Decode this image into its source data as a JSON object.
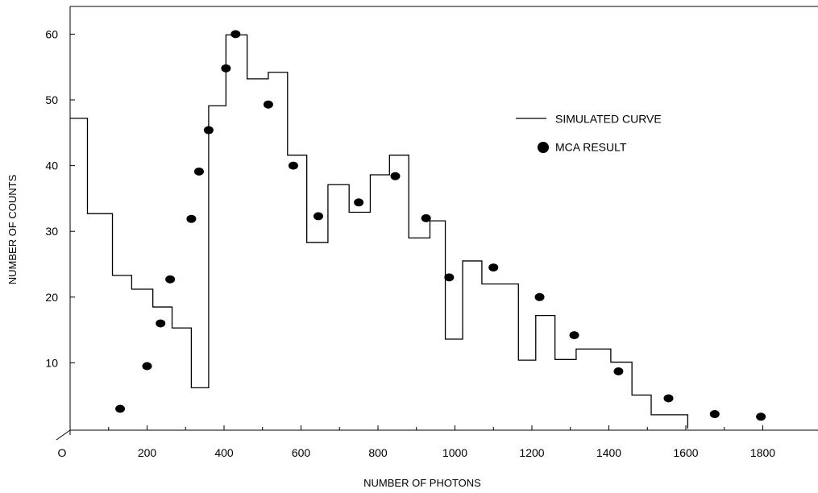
{
  "chart_data": {
    "type": "line",
    "title": "",
    "xlabel": "NUMBER OF PHOTONS",
    "ylabel": "NUMBER OF COUNTS",
    "xlim": [
      0,
      1850
    ],
    "ylim": [
      0,
      65
    ],
    "x_ticks": [
      {
        "value": 0,
        "label": "O"
      },
      {
        "value": 200,
        "label": "200"
      },
      {
        "value": 400,
        "label": "400"
      },
      {
        "value": 600,
        "label": "600"
      },
      {
        "value": 800,
        "label": "800"
      },
      {
        "value": 1000,
        "label": "1000"
      },
      {
        "value": 1200,
        "label": "1200"
      },
      {
        "value": 1400,
        "label": "1400"
      },
      {
        "value": 1600,
        "label": "1600"
      },
      {
        "value": 1800,
        "label": "1800"
      }
    ],
    "y_ticks": [
      {
        "value": 10,
        "label": "10"
      },
      {
        "value": 20,
        "label": "20"
      },
      {
        "value": 30,
        "label": "30"
      },
      {
        "value": 40,
        "label": "40"
      },
      {
        "value": 50,
        "label": "50"
      },
      {
        "value": 60,
        "label": "60"
      }
    ],
    "legend": {
      "placement": "top-right",
      "items": [
        {
          "label": "SIMULATED CURVE",
          "marker": "line"
        },
        {
          "label": "MCA  RESULT",
          "marker": "dot"
        }
      ]
    },
    "series": [
      {
        "name": "SIMULATED CURVE",
        "style": "step",
        "color": "#000000",
        "steps": [
          {
            "x0": 0,
            "x1": 45,
            "y": 47.2
          },
          {
            "x0": 45,
            "x1": 110,
            "y": 32.7
          },
          {
            "x0": 110,
            "x1": 160,
            "y": 23.3
          },
          {
            "x0": 160,
            "x1": 215,
            "y": 21.2
          },
          {
            "x0": 215,
            "x1": 265,
            "y": 18.5
          },
          {
            "x0": 265,
            "x1": 315,
            "y": 15.3
          },
          {
            "x0": 315,
            "x1": 360,
            "y": 6.2
          },
          {
            "x0": 360,
            "x1": 405,
            "y": 49.1
          },
          {
            "x0": 405,
            "x1": 460,
            "y": 59.9
          },
          {
            "x0": 460,
            "x1": 515,
            "y": 53.2
          },
          {
            "x0": 515,
            "x1": 565,
            "y": 54.2
          },
          {
            "x0": 565,
            "x1": 615,
            "y": 41.6
          },
          {
            "x0": 615,
            "x1": 670,
            "y": 28.3
          },
          {
            "x0": 670,
            "x1": 725,
            "y": 37.1
          },
          {
            "x0": 725,
            "x1": 780,
            "y": 32.9
          },
          {
            "x0": 780,
            "x1": 830,
            "y": 38.6
          },
          {
            "x0": 830,
            "x1": 880,
            "y": 41.6
          },
          {
            "x0": 880,
            "x1": 935,
            "y": 29.0
          },
          {
            "x0": 935,
            "x1": 975,
            "y": 31.6
          },
          {
            "x0": 975,
            "x1": 1020,
            "y": 13.6
          },
          {
            "x0": 1020,
            "x1": 1070,
            "y": 25.5
          },
          {
            "x0": 1070,
            "x1": 1165,
            "y": 22.0
          },
          {
            "x0": 1165,
            "x1": 1210,
            "y": 10.4
          },
          {
            "x0": 1210,
            "x1": 1260,
            "y": 17.2
          },
          {
            "x0": 1260,
            "x1": 1315,
            "y": 10.5
          },
          {
            "x0": 1315,
            "x1": 1405,
            "y": 12.1
          },
          {
            "x0": 1405,
            "x1": 1460,
            "y": 10.1
          },
          {
            "x0": 1460,
            "x1": 1510,
            "y": 5.1
          },
          {
            "x0": 1510,
            "x1": 1605,
            "y": 2.1
          }
        ]
      },
      {
        "name": "MCA  RESULT",
        "style": "scatter",
        "color": "#000000",
        "points": [
          {
            "x": 130,
            "y": 3.0
          },
          {
            "x": 200,
            "y": 9.5
          },
          {
            "x": 235,
            "y": 16.0
          },
          {
            "x": 260,
            "y": 22.7
          },
          {
            "x": 315,
            "y": 31.9
          },
          {
            "x": 335,
            "y": 39.1
          },
          {
            "x": 360,
            "y": 45.4
          },
          {
            "x": 405,
            "y": 54.8
          },
          {
            "x": 430,
            "y": 60.0
          },
          {
            "x": 515,
            "y": 49.3
          },
          {
            "x": 580,
            "y": 40.0
          },
          {
            "x": 645,
            "y": 32.3
          },
          {
            "x": 750,
            "y": 34.4
          },
          {
            "x": 845,
            "y": 38.4
          },
          {
            "x": 925,
            "y": 32.0
          },
          {
            "x": 985,
            "y": 23.0
          },
          {
            "x": 1100,
            "y": 24.5
          },
          {
            "x": 1220,
            "y": 20.0
          },
          {
            "x": 1310,
            "y": 14.2
          },
          {
            "x": 1425,
            "y": 8.7
          },
          {
            "x": 1555,
            "y": 4.6
          },
          {
            "x": 1675,
            "y": 2.2
          },
          {
            "x": 1795,
            "y": 1.8
          }
        ]
      }
    ],
    "grid": false
  }
}
